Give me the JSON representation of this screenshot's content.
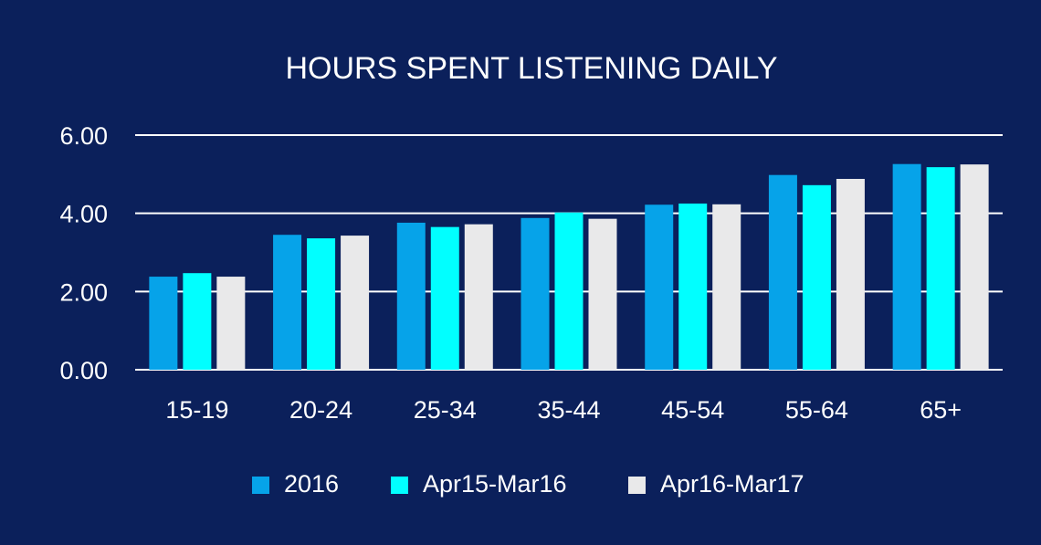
{
  "background_color": "#0b205b",
  "chart_data": {
    "type": "bar",
    "title": "HOURS SPENT LISTENING DAILY",
    "xlabel": "",
    "ylabel": "",
    "ylim": [
      0,
      6
    ],
    "yticks": [
      "0.00",
      "2.00",
      "4.00",
      "6.00"
    ],
    "grid": true,
    "legend_position": "bottom",
    "categories": [
      "15-19",
      "20-24",
      "25-34",
      "35-44",
      "45-54",
      "55-64",
      "65+"
    ],
    "series": [
      {
        "name": "2016",
        "color": "#06a3e9",
        "values": [
          2.38,
          3.45,
          3.76,
          3.88,
          4.22,
          4.98,
          5.26
        ]
      },
      {
        "name": "Apr15-Mar16",
        "color": "#01ffff",
        "values": [
          2.47,
          3.36,
          3.65,
          4.02,
          4.25,
          4.72,
          5.18
        ]
      },
      {
        "name": "Apr16-Mar17",
        "color": "#e9e9ea",
        "values": [
          2.38,
          3.43,
          3.72,
          3.86,
          4.23,
          4.88,
          5.25
        ]
      }
    ]
  }
}
